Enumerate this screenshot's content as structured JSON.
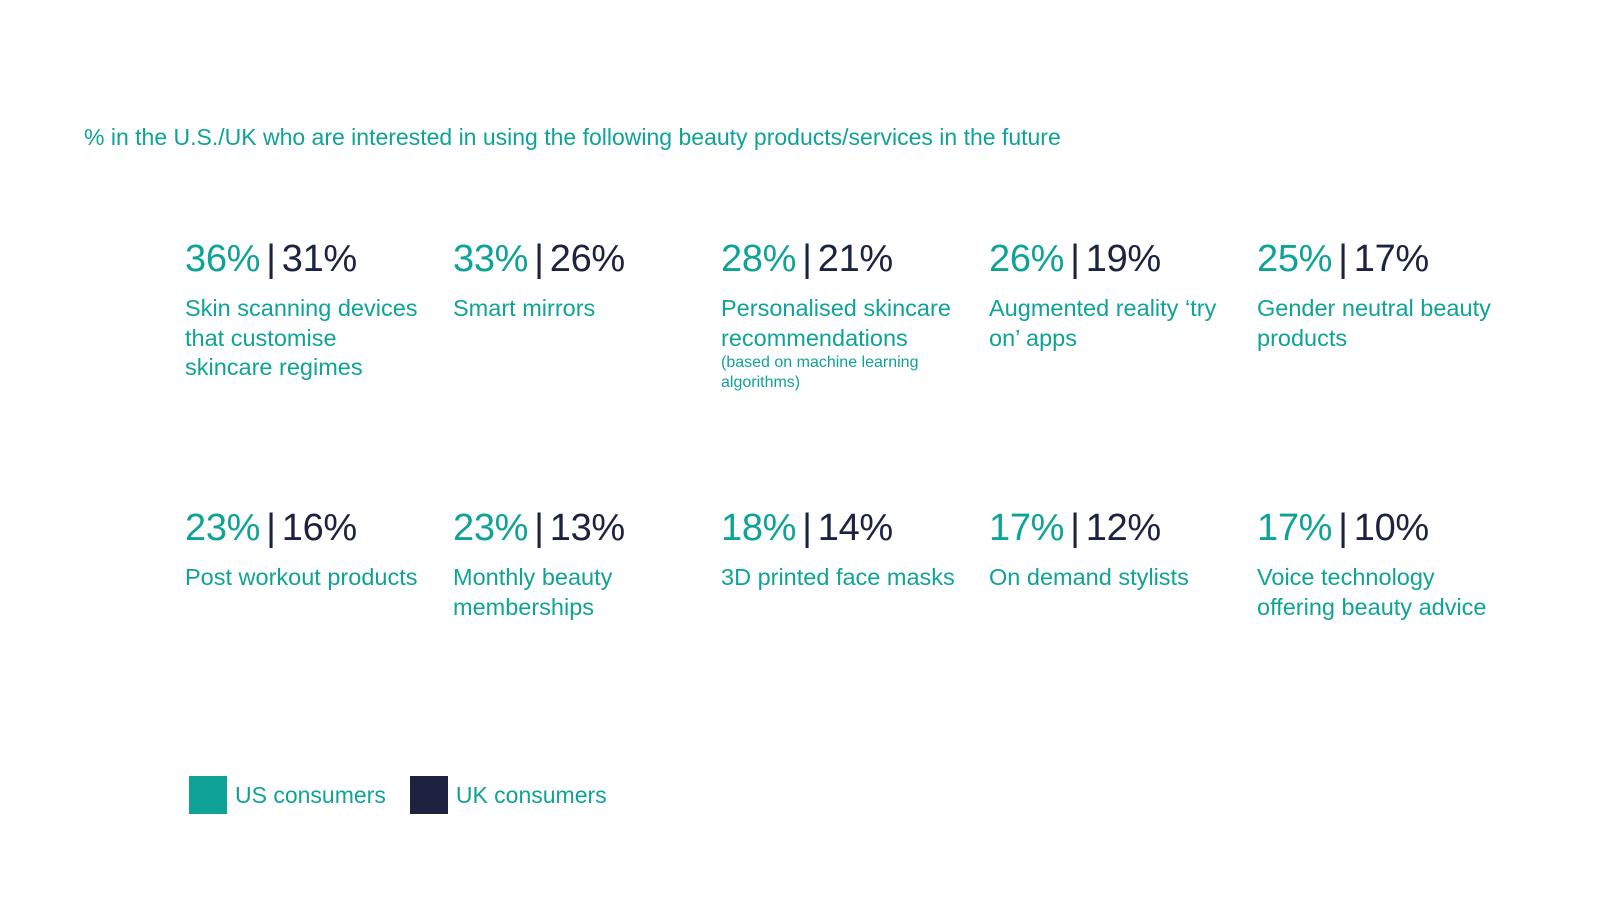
{
  "subtitle": "% in the U.S./UK who are interested in using the following beauty products/services in the future",
  "colors": {
    "us": "#0fa397",
    "uk": "#1c2240"
  },
  "separator": "|",
  "stats": [
    {
      "us": "36%",
      "uk": "31%",
      "label": "Skin scanning devices that customise skincare regimes",
      "note": ""
    },
    {
      "us": "33%",
      "uk": "26%",
      "label": "Smart mirrors",
      "note": ""
    },
    {
      "us": "28%",
      "uk": "21%",
      "label": "Personalised skincare recommendations",
      "note": "(based on machine learning algorithms)"
    },
    {
      "us": "26%",
      "uk": "19%",
      "label": "Augmented reality ‘try on’ apps",
      "note": ""
    },
    {
      "us": "25%",
      "uk": "17%",
      "label": "Gender neutral beauty products",
      "note": ""
    },
    {
      "us": "23%",
      "uk": "16%",
      "label": "Post workout products",
      "note": ""
    },
    {
      "us": "23%",
      "uk": "13%",
      "label": "Monthly beauty memberships",
      "note": ""
    },
    {
      "us": "18%",
      "uk": "14%",
      "label": "3D printed face masks",
      "note": ""
    },
    {
      "us": "17%",
      "uk": "12%",
      "label": "On demand stylists",
      "note": ""
    },
    {
      "us": "17%",
      "uk": "10%",
      "label": "Voice technology offering beauty advice",
      "note": ""
    }
  ],
  "legend": [
    {
      "label": "US consumers",
      "color": "#0fa397"
    },
    {
      "label": "UK consumers",
      "color": "#1c2240"
    }
  ],
  "chart_data": {
    "type": "table",
    "title": "",
    "subtitle": "% in the U.S./UK who are interested in using the following beauty products/services in the future",
    "categories": [
      "Skin scanning devices that customise skincare regimes",
      "Smart mirrors",
      "Personalised skincare recommendations (based on machine learning algorithms)",
      "Augmented reality ‘try on’ apps",
      "Gender neutral beauty products",
      "Post workout products",
      "Monthly beauty memberships",
      "3D printed face masks",
      "On demand stylists",
      "Voice technology offering beauty advice"
    ],
    "series": [
      {
        "name": "US consumers",
        "values": [
          36,
          33,
          28,
          26,
          25,
          23,
          23,
          18,
          17,
          17
        ]
      },
      {
        "name": "UK consumers",
        "values": [
          31,
          26,
          21,
          19,
          17,
          16,
          13,
          14,
          12,
          10
        ]
      }
    ],
    "unit": "%",
    "legend": "bottom-left"
  }
}
